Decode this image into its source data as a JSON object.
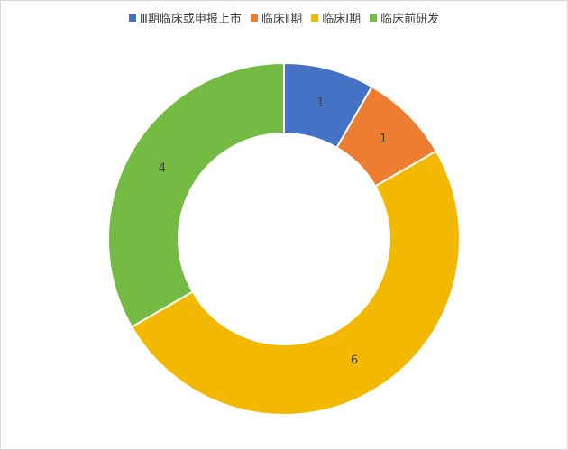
{
  "chart_data": {
    "type": "pie",
    "title": "",
    "legend_position": "top",
    "categories": [
      "Ⅲ期临床或申报上市",
      "临床Ⅱ期",
      "临床Ⅰ期",
      "临床前研发"
    ],
    "values": [
      1,
      1,
      6,
      4
    ],
    "colors": [
      "#4472c4",
      "#ed7d31",
      "#f2b900",
      "#74bb43"
    ]
  }
}
